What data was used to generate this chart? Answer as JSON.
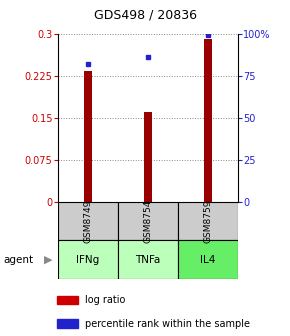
{
  "title": "GDS498 / 20836",
  "samples": [
    "GSM8749",
    "GSM8754",
    "GSM8759"
  ],
  "agents": [
    "IFNg",
    "TNFa",
    "IL4"
  ],
  "log_ratios": [
    0.233,
    0.16,
    0.29
  ],
  "percentile_ranks": [
    0.82,
    0.86,
    0.99
  ],
  "bar_color": "#990000",
  "dot_color": "#2222cc",
  "left_ylim": [
    0,
    0.3
  ],
  "right_ylim": [
    0,
    1.0
  ],
  "left_yticks": [
    0,
    0.075,
    0.15,
    0.225,
    0.3
  ],
  "left_yticklabels": [
    "0",
    "0.075",
    "0.15",
    "0.225",
    "0.3"
  ],
  "right_yticks": [
    0,
    0.25,
    0.5,
    0.75,
    1.0
  ],
  "right_yticklabels": [
    "0",
    "25",
    "50",
    "75",
    "100%"
  ],
  "grid_color": "#888888",
  "sample_bg_color": "#cccccc",
  "agent_bg_colors": [
    "#bbffbb",
    "#bbffbb",
    "#66ee66"
  ],
  "legend_log_ratio_color": "#cc0000",
  "legend_percentile_color": "#2222cc",
  "title_fontsize": 9,
  "tick_fontsize": 7,
  "bar_width": 0.13
}
